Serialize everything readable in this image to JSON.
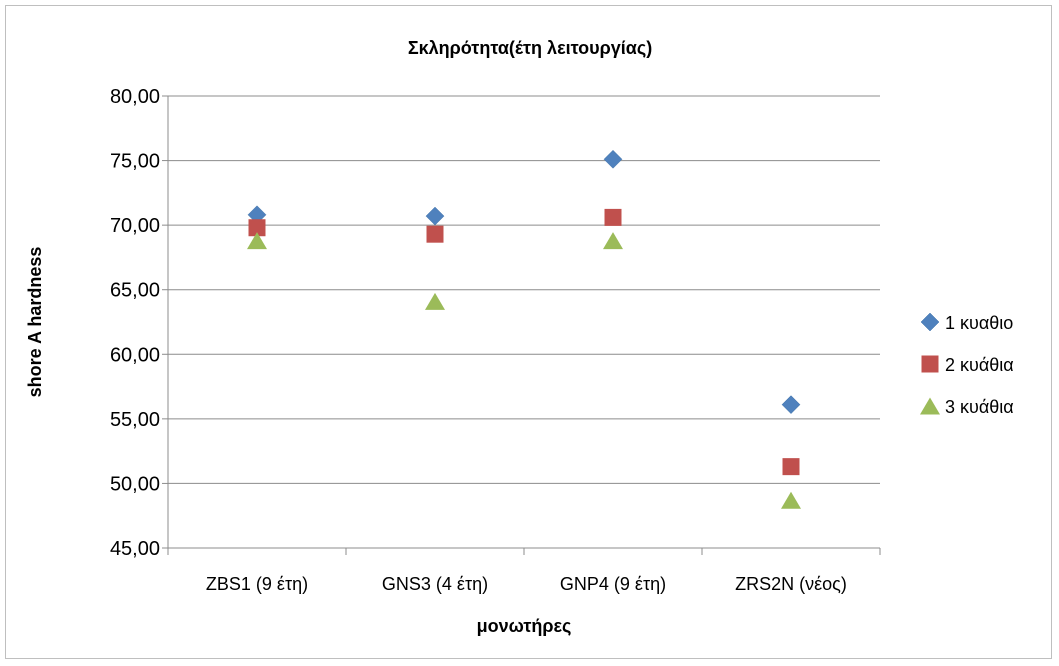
{
  "chart_data": {
    "type": "scatter",
    "title": "Σκληρότητα(έτη λειτουργίας)",
    "xlabel": "μονωτήρες",
    "ylabel": "shore A hardness",
    "categories": [
      "ZBS1 (9 έτη)",
      "GNS3 (4 έτη)",
      "GNP4 (9 έτη)",
      "ZRS2N (νέος)"
    ],
    "ylim": [
      45,
      80
    ],
    "yticks": [
      "45,00",
      "50,00",
      "55,00",
      "60,00",
      "65,00",
      "70,00",
      "75,00",
      "80,00"
    ],
    "grid": true,
    "legend": "right",
    "series": [
      {
        "name": "1 κυαθιο",
        "marker": "diamond",
        "color": "#4F81BD",
        "values": [
          70.8,
          70.7,
          75.1,
          56.1
        ]
      },
      {
        "name": "2 κυάθια",
        "marker": "square",
        "color": "#C0504D",
        "values": [
          69.8,
          69.3,
          70.6,
          51.3
        ]
      },
      {
        "name": "3 κυάθια",
        "marker": "triangle",
        "color": "#9BBB59",
        "values": [
          68.8,
          64.1,
          68.8,
          48.7
        ]
      }
    ]
  }
}
